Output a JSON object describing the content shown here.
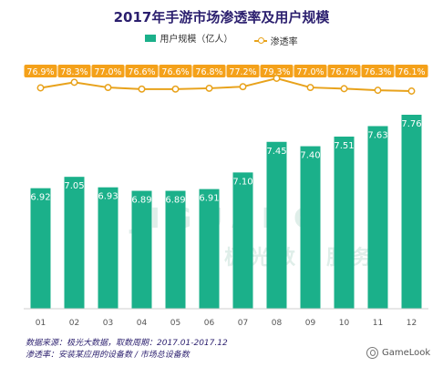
{
  "title": "2017年手游市场渗透率及用户规模",
  "watermark": "JIGUANG 极光数据服务",
  "footnote": {
    "line1": "数据来源：极光大数据，取数周期：2017.01-2017.12",
    "line2": "渗透率：安装某应用的设备数 / 市场总设备数"
  },
  "source": "GameLook",
  "colors": {
    "bar": "#1bb08a",
    "line": "#e8a21b",
    "title": "#2b1f6e",
    "label_bg": "#f4a11a"
  },
  "chart_data": {
    "type": "bar",
    "categories": [
      "01",
      "02",
      "03",
      "04",
      "05",
      "06",
      "07",
      "08",
      "09",
      "10",
      "11",
      "12"
    ],
    "series": [
      {
        "name": "用户规模（亿人）",
        "type": "bar",
        "values": [
          6.92,
          7.05,
          6.93,
          6.89,
          6.89,
          6.91,
          7.1,
          7.45,
          7.4,
          7.51,
          7.63,
          7.76
        ],
        "labels": [
          "6.92",
          "7.05",
          "6.93",
          "6.89",
          "6.89",
          "6.91",
          "7.10",
          "7.45",
          "7.40",
          "7.51",
          "7.63",
          "7.76"
        ]
      },
      {
        "name": "渗透率",
        "type": "line",
        "values": [
          76.9,
          78.3,
          77.0,
          76.6,
          76.6,
          76.8,
          77.2,
          79.3,
          77.0,
          76.7,
          76.3,
          76.1
        ],
        "labels": [
          "76.9%",
          "78.3%",
          "77.0%",
          "76.6%",
          "76.6%",
          "76.8%",
          "77.2%",
          "79.3%",
          "77.0%",
          "76.7%",
          "76.3%",
          "76.1%"
        ]
      }
    ],
    "xlabel": "",
    "ylabel": "",
    "grid": false,
    "legend_position": "top-center"
  }
}
